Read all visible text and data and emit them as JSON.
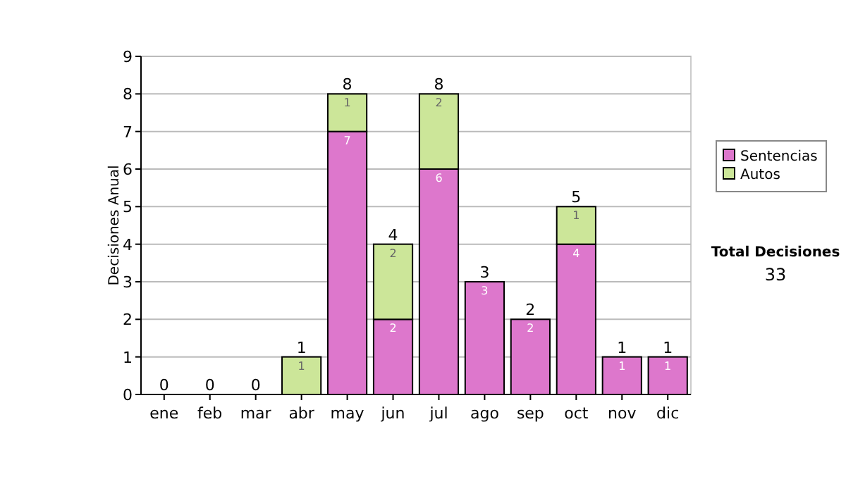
{
  "chart_data": {
    "type": "bar",
    "stacked": true,
    "ylabel": "Decisiones Anual",
    "categories": [
      "ene",
      "feb",
      "mar",
      "abr",
      "may",
      "jun",
      "jul",
      "ago",
      "sep",
      "oct",
      "nov",
      "dic"
    ],
    "series": [
      {
        "name": "Sentencias",
        "color": "#dd77cc",
        "values": [
          0,
          0,
          0,
          0,
          7,
          2,
          6,
          3,
          2,
          4,
          1,
          1
        ],
        "value_labels": [
          null,
          null,
          null,
          null,
          "7",
          "2",
          "6",
          "3",
          "2",
          "4",
          "1",
          "1"
        ]
      },
      {
        "name": "Autos",
        "color": "#cce699",
        "values": [
          0,
          0,
          0,
          1,
          1,
          2,
          2,
          0,
          0,
          1,
          0,
          0
        ],
        "value_labels": [
          null,
          null,
          null,
          "1",
          "1",
          "2",
          "2",
          null,
          null,
          "1",
          null,
          null
        ]
      }
    ],
    "totals": [
      "0",
      "0",
      "0",
      "1",
      "8",
      "4",
      "8",
      "3",
      "2",
      "5",
      "1",
      "1"
    ],
    "ylim": [
      0,
      9
    ],
    "yticks": [
      0,
      1,
      2,
      3,
      4,
      5,
      6,
      7,
      8,
      9
    ],
    "grid": "y",
    "legend": "right",
    "annotations": [
      "Total Decisiones",
      "33"
    ]
  }
}
